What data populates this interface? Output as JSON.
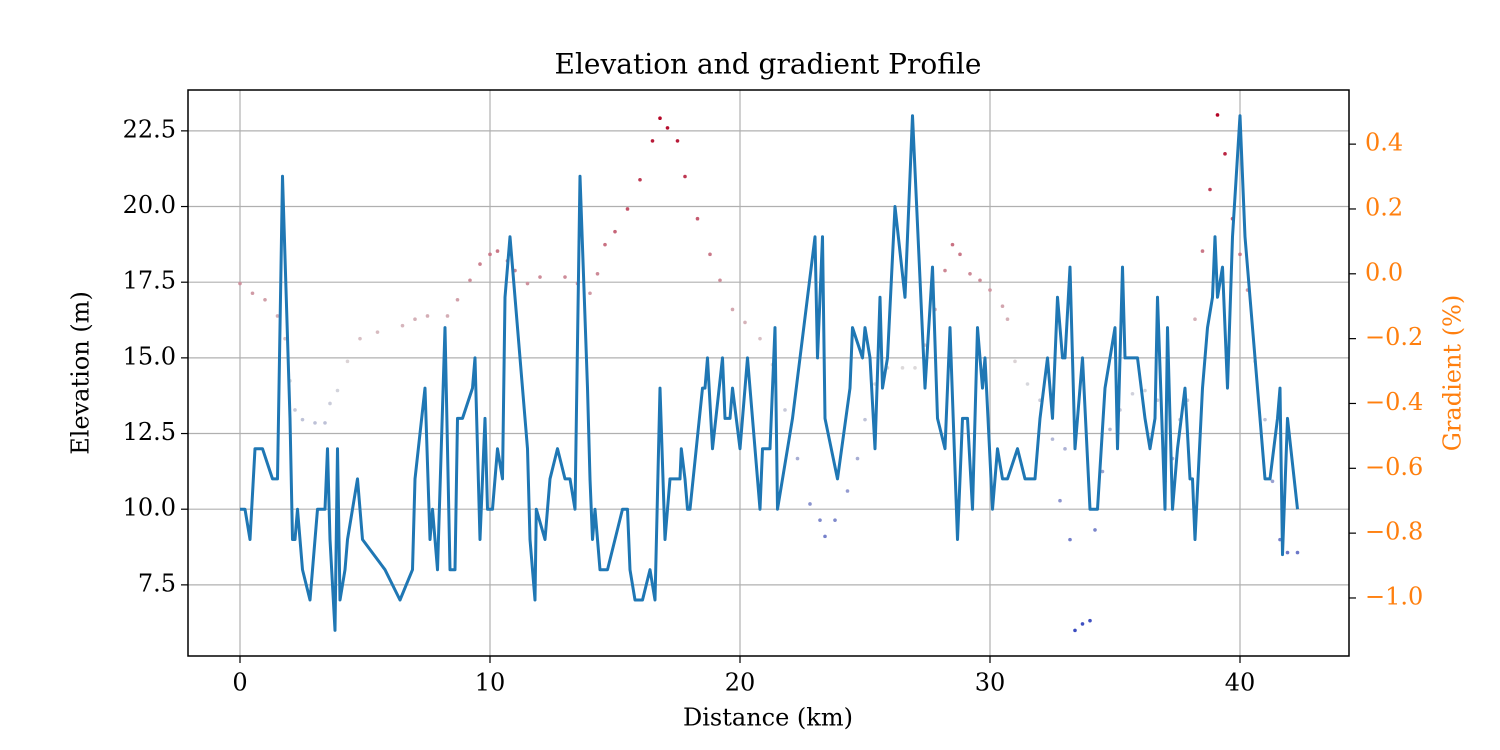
{
  "chart_data": {
    "type": "line",
    "title": "Elevation and gradient Profile",
    "xlabel": "Distance (km)",
    "ylabel": "Elevation (m)",
    "y2label": "Gradient (%)",
    "y2color": "#ff7f0e",
    "xlim": [
      -2.08,
      44.36
    ],
    "xticks": [
      0,
      10,
      20,
      30,
      40
    ],
    "ylim": [
      5.15,
      23.85
    ],
    "yticks": [
      7.5,
      {
        "value": 10,
        "label": "10.0"
      },
      12.5,
      {
        "value": 15,
        "label": "15.0"
      },
      17.5,
      {
        "value": 20,
        "label": "20.0"
      },
      22.5
    ],
    "y2lim": [
      -1.179,
      0.567
    ],
    "y2ticks": [
      {
        "value": -1.0,
        "label": "−1.0"
      },
      {
        "value": -0.8,
        "label": "−0.8"
      },
      {
        "value": -0.6,
        "label": "−0.6"
      },
      {
        "value": -0.4,
        "label": "−0.4"
      },
      {
        "value": -0.2,
        "label": "−0.2"
      },
      {
        "value": 0,
        "label": "0.0"
      },
      0.2,
      0.4
    ],
    "grid": true,
    "series": [
      {
        "type": "line",
        "color": "#1f77b4",
        "x": [
          0,
          0.2,
          0.4,
          0.6,
          0.9,
          1.3,
          1.5,
          1.7,
          2.0,
          2.1,
          2.2,
          2.3,
          2.5,
          2.8,
          3.1,
          3.4,
          3.5,
          3.6,
          3.8,
          3.9,
          4.0,
          4.2,
          4.3,
          4.7,
          4.9,
          5.8,
          6.4,
          6.9,
          7.0,
          7.4,
          7.6,
          7.7,
          7.9,
          8.2,
          8.4,
          8.6,
          8.7,
          8.9,
          9.3,
          9.4,
          9.6,
          9.8,
          9.9,
          10.1,
          10.3,
          10.5,
          10.6,
          10.8,
          11.4,
          11.5,
          11.6,
          11.8,
          11.85,
          12.2,
          12.4,
          12.7,
          13.0,
          13.2,
          13.4,
          13.6,
          13.9,
          14.0,
          14.1,
          14.2,
          14.4,
          14.7,
          15.3,
          15.5,
          15.6,
          15.8,
          16.1,
          16.4,
          16.6,
          16.8,
          17.0,
          17.2,
          17.6,
          17.65,
          17.8,
          17.9,
          18.0,
          18.5,
          18.6,
          18.7,
          18.9,
          19.3,
          19.4,
          19.6,
          19.7,
          20.0,
          20.3,
          20.8,
          20.9,
          21.2,
          21.4,
          21.5,
          21.9,
          22.1,
          22.4,
          23.0,
          23.1,
          23.3,
          23.4,
          23.9,
          24.4,
          24.5,
          24.9,
          25.0,
          25.2,
          25.4,
          25.6,
          25.7,
          25.9,
          26.2,
          26.6,
          26.9,
          27.4,
          27.7,
          27.9,
          28.2,
          28.4,
          28.7,
          28.9,
          29.1,
          29.3,
          29.5,
          29.7,
          29.8,
          30.1,
          30.3,
          30.5,
          30.7,
          31.1,
          31.4,
          31.8,
          32.0,
          32.3,
          32.5,
          32.7,
          32.9,
          33.0,
          33.2,
          33.4,
          33.7,
          34.0,
          34.3,
          34.6,
          35.0,
          35.1,
          35.3,
          35.4,
          35.9,
          36.2,
          36.4,
          36.6,
          36.7,
          37.0,
          37.1,
          37.3,
          37.5,
          37.8,
          38.0,
          38.1,
          38.2,
          38.5,
          38.7,
          38.9,
          39.0,
          39.1,
          39.3,
          39.5,
          39.7,
          40.0,
          40.2,
          40.5,
          40.7,
          41.0,
          41.2,
          41.5,
          41.6,
          41.7,
          41.9,
          42.3
        ],
        "values": [
          10,
          10,
          9,
          12,
          12,
          11,
          11,
          21,
          13,
          9,
          9,
          10,
          8,
          7,
          10,
          10,
          12,
          9,
          6,
          12,
          7,
          8,
          9,
          11,
          9,
          8,
          7,
          8,
          11,
          14,
          9,
          10,
          8,
          16,
          8,
          8,
          13,
          13,
          14,
          15,
          9,
          13,
          10,
          10,
          12,
          11,
          17,
          19,
          13,
          12,
          9,
          7,
          10,
          9,
          11,
          12,
          11,
          11,
          10,
          21,
          14,
          11,
          9,
          10,
          8,
          8,
          10,
          10,
          8,
          7,
          7,
          8,
          7,
          14,
          9,
          11,
          11,
          12,
          11,
          10,
          10,
          14,
          14,
          15,
          12,
          15,
          13,
          13,
          14,
          12,
          15,
          10,
          12,
          12,
          16,
          10,
          12,
          13,
          15,
          19,
          15,
          19,
          13,
          11,
          14,
          16,
          15,
          16,
          15,
          12,
          17,
          14,
          15,
          20,
          17,
          23,
          14,
          18,
          13,
          12,
          16,
          9,
          13,
          13,
          10,
          16,
          14,
          15,
          10,
          12,
          11,
          11,
          12,
          11,
          11,
          13,
          15,
          13,
          17,
          15,
          15,
          18,
          12,
          15,
          10,
          10,
          14,
          16,
          12,
          18,
          15,
          15,
          13,
          12,
          13,
          17,
          10,
          16,
          10,
          12,
          14,
          11,
          11,
          9,
          14,
          16,
          17,
          19,
          17,
          18,
          14,
          19,
          23,
          19,
          16,
          14,
          11,
          11,
          13,
          14,
          8.5,
          13,
          10
        ]
      },
      {
        "type": "scatter",
        "axis": "y2",
        "colormap": "coolwarm",
        "x": [
          0,
          0.5,
          1,
          1.5,
          1.8,
          2.0,
          2.2,
          2.5,
          3,
          3.4,
          3.6,
          3.9,
          4.3,
          4.8,
          5.5,
          6.5,
          7,
          7.5,
          8.3,
          8.7,
          9.2,
          9.6,
          10,
          10.3,
          10.7,
          11.0,
          11.5,
          12,
          13,
          13.5,
          14,
          14.3,
          14.6,
          15,
          15.5,
          16,
          16.5,
          16.8,
          17.1,
          17.5,
          17.8,
          18.3,
          18.8,
          19.2,
          19.7,
          20.2,
          20.8,
          21.3,
          21.8,
          22.3,
          22.8,
          23.2,
          23.4,
          23.8,
          24.3,
          24.7,
          25.0,
          25.4,
          25.9,
          26.5,
          27,
          27.4,
          27.8,
          28.2,
          28.5,
          28.8,
          29.2,
          29.6,
          30,
          30.5,
          30.7,
          31,
          31.5,
          32,
          32.5,
          32.8,
          33.0,
          33.2,
          33.4,
          33.7,
          34,
          34.2,
          34.5,
          34.8,
          35.2,
          35.7,
          36.2,
          36.7,
          37.0,
          37.3,
          37.6,
          37.9,
          38.2,
          38.5,
          38.8,
          39.1,
          39.4,
          39.7,
          40,
          40.3,
          40.6,
          41,
          41.3,
          41.6,
          41.9,
          42.3
        ],
        "values": [
          -0.03,
          -0.06,
          -0.08,
          -0.13,
          -0.2,
          -0.33,
          -0.42,
          -0.45,
          -0.46,
          -0.46,
          -0.4,
          -0.36,
          -0.27,
          -0.2,
          -0.18,
          -0.16,
          -0.14,
          -0.13,
          -0.13,
          -0.08,
          -0.02,
          0.03,
          0.06,
          0.07,
          0.04,
          0.01,
          -0.03,
          -0.01,
          -0.01,
          -0.03,
          -0.06,
          0.0,
          0.09,
          0.13,
          0.2,
          0.29,
          0.41,
          0.48,
          0.45,
          0.41,
          0.3,
          0.17,
          0.06,
          -0.02,
          -0.11,
          -0.15,
          -0.2,
          -0.28,
          -0.42,
          -0.57,
          -0.71,
          -0.76,
          -0.81,
          -0.76,
          -0.67,
          -0.57,
          -0.45,
          -0.34,
          -0.29,
          -0.29,
          -0.29,
          -0.22,
          -0.11,
          0.01,
          0.09,
          0.06,
          0.0,
          -0.02,
          -0.05,
          -0.1,
          -0.14,
          -0.27,
          -0.34,
          -0.39,
          -0.51,
          -0.7,
          -0.54,
          -0.82,
          -1.1,
          -1.08,
          -1.07,
          -0.79,
          -0.61,
          -0.48,
          -0.42,
          -0.37,
          -0.36,
          -0.39,
          -0.64,
          -0.57,
          -0.45,
          -0.39,
          -0.14,
          0.07,
          0.26,
          0.49,
          0.37,
          0.17,
          0.06,
          -0.05,
          -0.27,
          -0.45,
          -0.64,
          -0.82,
          -0.86,
          -0.86
        ]
      }
    ]
  }
}
